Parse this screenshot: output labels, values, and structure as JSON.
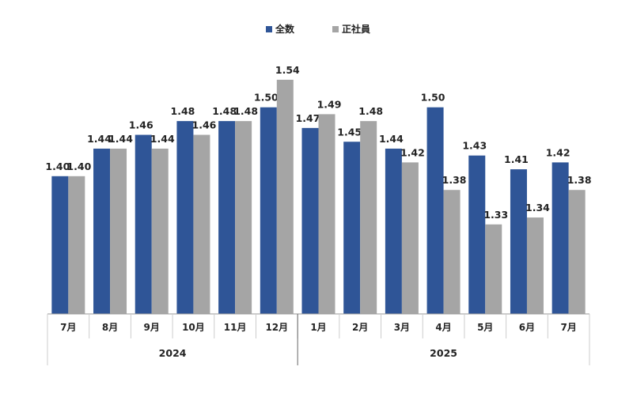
{
  "chart_data": {
    "type": "bar",
    "title": "",
    "legend_position": "top-center",
    "categories": [
      "7月",
      "8月",
      "9月",
      "10月",
      "11月",
      "12月",
      "1月",
      "2月",
      "3月",
      "4月",
      "5月",
      "6月",
      "7月"
    ],
    "groups": [
      {
        "label": "2024",
        "count": 6
      },
      {
        "label": "2025",
        "count": 7
      }
    ],
    "series": [
      {
        "name": "全数",
        "color": "#2F5597",
        "values": [
          1.4,
          1.44,
          1.46,
          1.48,
          1.48,
          1.5,
          1.47,
          1.45,
          1.44,
          1.5,
          1.43,
          1.41,
          1.42
        ]
      },
      {
        "name": "正社員",
        "color": "#A5A5A5",
        "values": [
          1.4,
          1.44,
          1.44,
          1.46,
          1.48,
          1.54,
          1.49,
          1.48,
          1.42,
          1.38,
          1.33,
          1.34,
          1.38
        ]
      }
    ],
    "ylim": [
      1.2,
      1.6
    ],
    "grid": false,
    "xlabel": "",
    "ylabel": ""
  }
}
